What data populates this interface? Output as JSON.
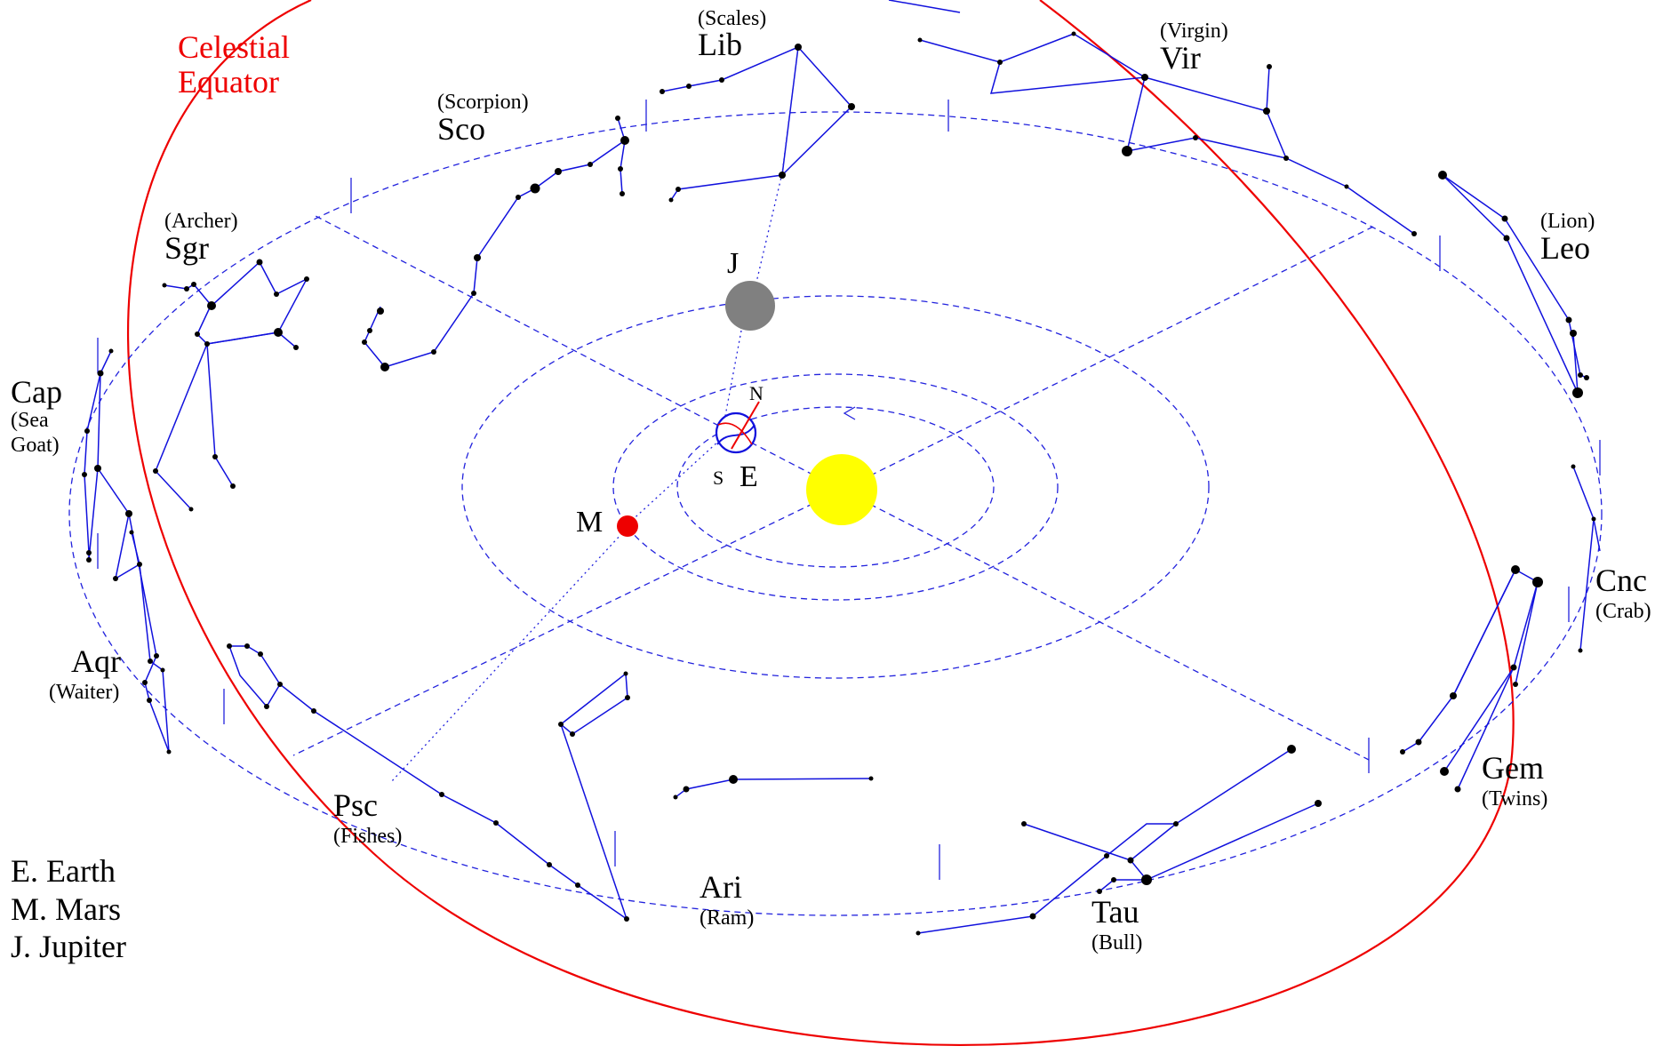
{
  "equator": {
    "label_line1": "Celestial",
    "label_line2": "Equator",
    "color": "#ee0000"
  },
  "bodies": {
    "earth": {
      "label": "E",
      "north": "N",
      "south": "S"
    },
    "mars": {
      "label": "M",
      "color": "#ee0000"
    },
    "jupiter": {
      "label": "J",
      "color": "#808080"
    },
    "sun_color": "#ffff00"
  },
  "constellations": {
    "lib": {
      "abbr": "Lib",
      "name": "(Scales)"
    },
    "vir": {
      "abbr": "Vir",
      "name": "(Virgin)"
    },
    "sco": {
      "abbr": "Sco",
      "name": "(Scorpion)"
    },
    "sgr": {
      "abbr": "Sgr",
      "name": "(Archer)"
    },
    "leo": {
      "abbr": "Leo",
      "name": "(Lion)"
    },
    "cap": {
      "abbr": "Cap",
      "name1": "(Sea",
      "name2": "Goat)"
    },
    "cnc": {
      "abbr": "Cnc",
      "name": "(Crab)"
    },
    "aqr": {
      "abbr": "Aqr",
      "name": "(Waiter)"
    },
    "gem": {
      "abbr": "Gem",
      "name": "(Twins)"
    },
    "psc": {
      "abbr": "Psc",
      "name": "(Fishes)"
    },
    "ari": {
      "abbr": "Ari",
      "name": "(Ram)"
    },
    "tau": {
      "abbr": "Tau",
      "name": "(Bull)"
    }
  },
  "legend": [
    "E. Earth",
    "M. Mars",
    "J. Jupiter"
  ]
}
